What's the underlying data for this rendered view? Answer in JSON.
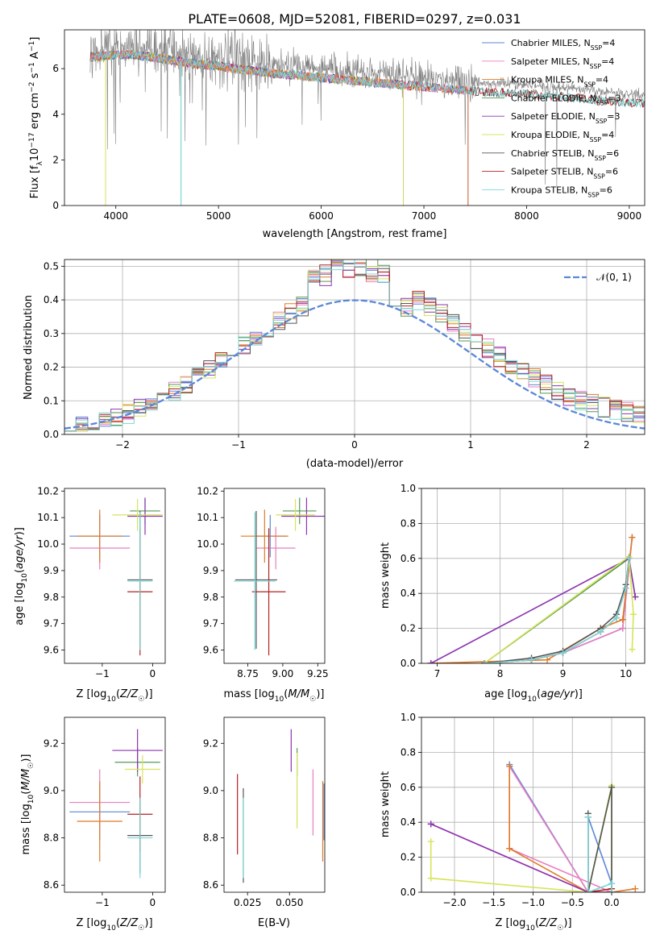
{
  "figure_title": "PLATE=0608, MJD=52081, FIBERID=0297, z=0.031",
  "colors": [
    "#5b87d8",
    "#e87fc0",
    "#e07b27",
    "#559955",
    "#8c35b0",
    "#d6e45a",
    "#555555",
    "#b22222",
    "#7ad7d6"
  ],
  "chart_data": [
    {
      "id": "spectrum",
      "type": "line",
      "xlabel": "wavelength [Angstrom, rest frame]",
      "ylabel": "Flux [f_λ 10^-17 erg cm^-2 s^-1 A^-1]",
      "xlim": [
        3500,
        9150
      ],
      "ylim": [
        0,
        7.7
      ],
      "xticks": [
        4000,
        5000,
        6000,
        7000,
        8000,
        9000
      ],
      "yticks": [
        0,
        2,
        4,
        6
      ],
      "data_series": {
        "name": "",
        "color": "#808080",
        "note_x_range": [
          3750,
          9150
        ]
      },
      "continuum": {
        "x": [
          3750,
          4000,
          4200,
          4500,
          4800,
          5000,
          5500,
          6000,
          6500,
          7000,
          7500,
          8000,
          8500,
          9000
        ],
        "y": [
          6.9,
          7.0,
          7.0,
          6.8,
          6.6,
          6.5,
          6.2,
          6.0,
          5.8,
          5.6,
          5.4,
          5.3,
          5.1,
          4.9
        ]
      },
      "model_cutoffs": [
        {
          "series": "Chabrier MILES",
          "x": 7430
        },
        {
          "series": "Salpeter MILES",
          "x": 7430
        },
        {
          "series": "Kroupa MILES",
          "x": 7430
        },
        {
          "series": "Chabrier ELODIE",
          "x": 6800
        },
        {
          "series": "Salpeter ELODIE",
          "x": 6800
        },
        {
          "series": "Kroupa ELODIE",
          "x": 6800
        }
      ],
      "legend_position": "top-right",
      "legend": [
        {
          "label": "Chabrier MILES, N_SSP=4"
        },
        {
          "label": "Salpeter MILES, N_SSP=4"
        },
        {
          "label": "Kroupa MILES, N_SSP=4"
        },
        {
          "label": "Chabrier ELODIE, N_SSP=3"
        },
        {
          "label": "Salpeter ELODIE, N_SSP=3"
        },
        {
          "label": "Kroupa ELODIE, N_SSP=4"
        },
        {
          "label": "Chabrier STELIB, N_SSP=6"
        },
        {
          "label": "Salpeter STELIB, N_SSP=6"
        },
        {
          "label": "Kroupa STELIB, N_SSP=6"
        }
      ]
    },
    {
      "id": "residuals",
      "type": "histogram",
      "xlabel": "(data-model)/error",
      "ylabel": "Normed distribution",
      "xlim": [
        -2.5,
        2.5
      ],
      "ylim": [
        0,
        0.52
      ],
      "xticks": [
        -2,
        -1,
        0,
        1,
        2
      ],
      "yticks": [
        0.0,
        0.1,
        0.2,
        0.3,
        0.4,
        0.5
      ],
      "grid": true,
      "bin_width": 0.1,
      "legend": [
        {
          "label": "𝒩(0, 1)"
        }
      ],
      "legend_position": "top-right",
      "gaussian": {
        "mean": 0,
        "sigma": 1,
        "color": "#5b87d8"
      }
    },
    {
      "id": "Z-age",
      "type": "errorbar",
      "xlabel": "Z [log10(Z/Z☉)]",
      "ylabel": "age  [log10(age/yr)]",
      "xlim": [
        -1.75,
        0.25
      ],
      "ylim": [
        9.55,
        10.21
      ],
      "xticks": [
        -1,
        0
      ],
      "yticks": [
        9.6,
        9.7,
        9.8,
        9.9,
        10.0,
        10.1,
        10.2
      ],
      "points": [
        {
          "x": -1.05,
          "xerr": 0.6,
          "y": 10.03,
          "yerr": 0.08,
          "c": 0
        },
        {
          "x": -1.05,
          "xerr": 0.6,
          "y": 9.985,
          "yerr": 0.08,
          "c": 1
        },
        {
          "x": -1.05,
          "xerr": 0.45,
          "y": 10.03,
          "yerr": 0.1,
          "c": 2
        },
        {
          "x": -0.15,
          "xerr": 0.3,
          "y": 10.125,
          "yerr": 0.05,
          "c": 3
        },
        {
          "x": -0.15,
          "xerr": 0.35,
          "y": 10.105,
          "yerr": 0.07,
          "c": 4
        },
        {
          "x": -0.3,
          "xerr": 0.5,
          "y": 10.11,
          "yerr": 0.06,
          "c": 5
        },
        {
          "x": -0.25,
          "xerr": 0.25,
          "y": 9.865,
          "yerr": 0.26,
          "c": 6
        },
        {
          "x": -0.25,
          "xerr": 0.25,
          "y": 9.82,
          "yerr": 0.24,
          "c": 7
        },
        {
          "x": -0.25,
          "xerr": 0.25,
          "y": 9.86,
          "yerr": 0.26,
          "c": 8
        }
      ]
    },
    {
      "id": "mass-age",
      "type": "errorbar",
      "xlabel": "mass [log10(M/M☉)]",
      "ylabel": "",
      "xlim": [
        8.58,
        9.3
      ],
      "ylim": [
        9.55,
        10.21
      ],
      "xticks": [
        8.75,
        9.0,
        9.25
      ],
      "yticks": [
        9.6,
        9.7,
        9.8,
        9.9,
        10.0,
        10.1,
        10.2
      ],
      "points": [
        {
          "x": 8.91,
          "xerr": 0.12,
          "y": 10.03,
          "yerr": 0.08,
          "c": 0
        },
        {
          "x": 8.95,
          "xerr": 0.14,
          "y": 9.985,
          "yerr": 0.08,
          "c": 1
        },
        {
          "x": 8.87,
          "xerr": 0.17,
          "y": 10.03,
          "yerr": 0.1,
          "c": 2
        },
        {
          "x": 9.12,
          "xerr": 0.12,
          "y": 10.125,
          "yerr": 0.05,
          "c": 3
        },
        {
          "x": 9.17,
          "xerr": 0.18,
          "y": 10.105,
          "yerr": 0.07,
          "c": 4
        },
        {
          "x": 9.09,
          "xerr": 0.14,
          "y": 10.11,
          "yerr": 0.06,
          "c": 5
        },
        {
          "x": 8.81,
          "xerr": 0.15,
          "y": 9.865,
          "yerr": 0.26,
          "c": 6
        },
        {
          "x": 8.9,
          "xerr": 0.12,
          "y": 9.82,
          "yerr": 0.24,
          "c": 7
        },
        {
          "x": 8.8,
          "xerr": 0.15,
          "y": 9.86,
          "yerr": 0.26,
          "c": 8
        }
      ]
    },
    {
      "id": "age-weight",
      "type": "line",
      "xlabel": "age  [log10(age/yr)]",
      "ylabel": "mass weight",
      "xlim": [
        6.75,
        10.3
      ],
      "ylim": [
        0,
        1.0
      ],
      "xticks": [
        7,
        8,
        9,
        10
      ],
      "yticks": [
        0.0,
        0.2,
        0.4,
        0.6,
        0.8,
        1.0
      ],
      "grid": true,
      "series": [
        {
          "c": 0,
          "x": [
            8.5,
            9.0,
            9.95,
            10.1
          ],
          "y": [
            0.02,
            0.06,
            0.2,
            0.72
          ]
        },
        {
          "c": 1,
          "x": [
            8.5,
            9.0,
            9.95,
            10.1
          ],
          "y": [
            0.02,
            0.06,
            0.2,
            0.72
          ]
        },
        {
          "c": 2,
          "x": [
            6.9,
            8.75,
            9.6,
            9.95,
            10.1
          ],
          "y": [
            0.0,
            0.02,
            0.2,
            0.25,
            0.72
          ]
        },
        {
          "c": 3,
          "x": [
            7.75,
            10.05,
            10.15
          ],
          "y": [
            0.0,
            0.6,
            0.38
          ]
        },
        {
          "c": 4,
          "x": [
            6.9,
            10.05,
            10.15
          ],
          "y": [
            0.0,
            0.6,
            0.38
          ]
        },
        {
          "c": 5,
          "x": [
            7.75,
            10.05,
            10.12,
            10.1
          ],
          "y": [
            0.0,
            0.61,
            0.28,
            0.08
          ]
        },
        {
          "c": 6,
          "x": [
            7.75,
            8.5,
            9.0,
            9.6,
            9.85,
            10.0,
            10.05
          ],
          "y": [
            0.0,
            0.03,
            0.07,
            0.2,
            0.28,
            0.45,
            0.6
          ]
        },
        {
          "c": 7,
          "x": [
            7.75,
            8.5,
            9.0,
            9.6,
            9.85,
            10.0,
            10.05
          ],
          "y": [
            0.0,
            0.02,
            0.06,
            0.18,
            0.26,
            0.43,
            0.6
          ]
        },
        {
          "c": 8,
          "x": [
            7.75,
            8.5,
            9.0,
            9.6,
            9.85,
            10.0,
            10.05
          ],
          "y": [
            0.0,
            0.02,
            0.06,
            0.18,
            0.26,
            0.43,
            0.6
          ]
        }
      ]
    },
    {
      "id": "Z-mass",
      "type": "errorbar",
      "xlabel": "Z [log10(Z/Z☉)]",
      "ylabel": "mass [log10(M/M☉)]",
      "xlim": [
        -1.75,
        0.25
      ],
      "ylim": [
        8.57,
        9.31
      ],
      "xticks": [
        -1,
        0
      ],
      "yticks": [
        8.6,
        8.8,
        9.0,
        9.2
      ],
      "points": [
        {
          "x": -1.05,
          "xerr": 0.6,
          "y": 8.91,
          "yerr": 0.12,
          "c": 0
        },
        {
          "x": -1.05,
          "xerr": 0.6,
          "y": 8.95,
          "yerr": 0.14,
          "c": 1
        },
        {
          "x": -1.05,
          "xerr": 0.45,
          "y": 8.87,
          "yerr": 0.17,
          "c": 2
        },
        {
          "x": -0.3,
          "xerr": 0.45,
          "y": 9.12,
          "yerr": 0.06,
          "c": 3
        },
        {
          "x": -0.3,
          "xerr": 0.5,
          "y": 9.17,
          "yerr": 0.09,
          "c": 4
        },
        {
          "x": -0.2,
          "xerr": 0.35,
          "y": 9.09,
          "yerr": 0.06,
          "c": 5
        },
        {
          "x": -0.25,
          "xerr": 0.25,
          "y": 8.81,
          "yerr": 0.16,
          "c": 6
        },
        {
          "x": -0.25,
          "xerr": 0.25,
          "y": 8.9,
          "yerr": 0.16,
          "c": 7
        },
        {
          "x": -0.25,
          "xerr": 0.25,
          "y": 8.8,
          "yerr": 0.17,
          "c": 8
        }
      ]
    },
    {
      "id": "ebv-mass",
      "type": "errorbar",
      "xlabel": "E(B-V)",
      "ylabel": "",
      "xlim": [
        0.011,
        0.071
      ],
      "ylim": [
        8.57,
        9.31
      ],
      "xticks": [
        0.025,
        0.05
      ],
      "yticks": [
        8.6,
        8.8,
        9.0,
        9.2
      ],
      "points": [
        {
          "x": 0.0705,
          "xerr": 0,
          "y": 8.91,
          "yerr": 0.12,
          "c": 0
        },
        {
          "x": 0.064,
          "xerr": 0,
          "y": 8.95,
          "yerr": 0.14,
          "c": 1
        },
        {
          "x": 0.0698,
          "xerr": 0,
          "y": 8.87,
          "yerr": 0.17,
          "c": 2
        },
        {
          "x": 0.0545,
          "xerr": 0,
          "y": 9.12,
          "yerr": 0.06,
          "c": 3
        },
        {
          "x": 0.051,
          "xerr": 0,
          "y": 9.17,
          "yerr": 0.09,
          "c": 4
        },
        {
          "x": 0.0545,
          "xerr": 0,
          "y": 9.0,
          "yerr": 0.16,
          "c": 5
        },
        {
          "x": 0.0225,
          "xerr": 0,
          "y": 8.81,
          "yerr": 0.2,
          "c": 6
        },
        {
          "x": 0.019,
          "xerr": 0,
          "y": 8.9,
          "yerr": 0.17,
          "c": 7
        },
        {
          "x": 0.0225,
          "xerr": 0,
          "y": 8.8,
          "yerr": 0.17,
          "c": 8
        }
      ]
    },
    {
      "id": "Z-weight",
      "type": "line",
      "xlabel": "Z [log10(Z/Z☉)]",
      "ylabel": "mass weight",
      "xlim": [
        -2.42,
        0.42
      ],
      "ylim": [
        0,
        1.0
      ],
      "xticks": [
        -2.0,
        -1.5,
        -1.0,
        -0.5,
        0.0
      ],
      "yticks": [
        0.0,
        0.2,
        0.4,
        0.6,
        0.8,
        1.0
      ],
      "grid": true,
      "series": [
        {
          "c": 0,
          "x": [
            -1.3,
            -0.3,
            -0.3,
            0.0,
            0.0
          ],
          "y": [
            0.73,
            0.0,
            0.43,
            0.05,
            0.0
          ]
        },
        {
          "c": 1,
          "x": [
            -2.3,
            -0.3,
            -1.3,
            -1.3,
            0.0
          ],
          "y": [
            0.39,
            0.0,
            0.72,
            0.25,
            0.0
          ]
        },
        {
          "c": 2,
          "x": [
            -1.3,
            -1.3,
            -0.3,
            0.0,
            0.3
          ],
          "y": [
            0.72,
            0.25,
            0.0,
            0.0,
            0.02
          ]
        },
        {
          "c": 3,
          "x": [
            -0.3,
            0.0,
            0.0
          ],
          "y": [
            0.0,
            0.6,
            0.0
          ]
        },
        {
          "c": 4,
          "x": [
            -2.3,
            -0.3,
            0.0
          ],
          "y": [
            0.39,
            0.0,
            0.0
          ]
        },
        {
          "c": 5,
          "x": [
            -2.3,
            -2.3,
            -0.3,
            0.0,
            0.0
          ],
          "y": [
            0.29,
            0.08,
            0.0,
            0.61,
            0.0
          ]
        },
        {
          "c": 6,
          "x": [
            -0.3,
            -0.3,
            0.0,
            0.0
          ],
          "y": [
            0.45,
            0.0,
            0.6,
            0.0
          ]
        },
        {
          "c": 7,
          "x": [
            -0.3,
            -0.3,
            0.0
          ],
          "y": [
            0.43,
            0.0,
            0.02
          ]
        },
        {
          "c": 8,
          "x": [
            -0.3,
            -0.3,
            0.0,
            0.0
          ],
          "y": [
            0.43,
            0.0,
            0.05,
            0.0
          ]
        }
      ]
    }
  ]
}
